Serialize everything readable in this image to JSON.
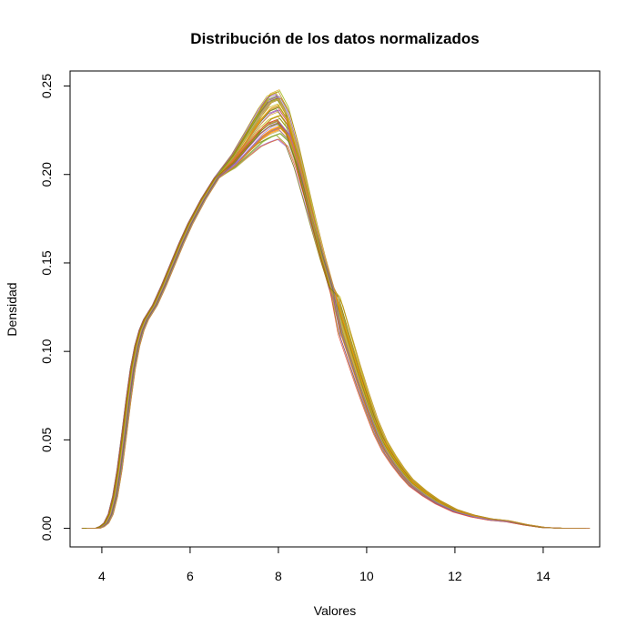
{
  "chart_data": {
    "type": "line",
    "title": "Distribución de los datos normalizados",
    "xlabel": "Valores",
    "ylabel": "Densidad",
    "xlim": [
      3.28,
      15.28
    ],
    "ylim": [
      -0.0105,
      0.2585
    ],
    "x_ticks": [
      4,
      6,
      8,
      10,
      12,
      14
    ],
    "x_tick_labels": [
      "4",
      "6",
      "8",
      "10",
      "12",
      "14"
    ],
    "y_ticks": [
      0,
      0.05,
      0.1,
      0.15,
      0.2,
      0.25
    ],
    "y_tick_labels": [
      "0.00",
      "0.05",
      "0.10",
      "0.15",
      "0.20",
      "0.25"
    ],
    "grid": false,
    "legend": "none",
    "series_count": 60,
    "series_colors": [
      "#9ACD32",
      "#DAA520",
      "#BDB76B",
      "#B8860B",
      "#8E44AD",
      "#E74C3C",
      "#6B8E23",
      "#C0B000",
      "#FF8C00",
      "#9370DB",
      "#808000",
      "#CD853F"
    ],
    "representative_series": {
      "x": [
        3.6,
        3.9,
        4.0,
        4.1,
        4.2,
        4.3,
        4.4,
        4.5,
        4.6,
        4.7,
        4.8,
        4.9,
        5.0,
        5.2,
        5.4,
        5.6,
        5.8,
        6.0,
        6.3,
        6.6,
        7.0,
        7.3,
        7.6,
        7.8,
        8.0,
        8.2,
        8.4,
        8.6,
        8.8,
        9.0,
        9.2,
        9.4,
        9.6,
        9.8,
        10.0,
        10.2,
        10.4,
        10.6,
        10.8,
        11.0,
        11.3,
        11.6,
        12.0,
        12.4,
        12.8,
        13.2,
        13.6,
        14.0,
        14.5,
        15.0
      ],
      "y": [
        0.0,
        0.0,
        0.001,
        0.003,
        0.008,
        0.018,
        0.033,
        0.052,
        0.072,
        0.09,
        0.103,
        0.112,
        0.118,
        0.126,
        0.137,
        0.149,
        0.161,
        0.172,
        0.186,
        0.198,
        0.208,
        0.218,
        0.228,
        0.233,
        0.235,
        0.228,
        0.212,
        0.192,
        0.172,
        0.153,
        0.136,
        0.119,
        0.103,
        0.087,
        0.072,
        0.058,
        0.047,
        0.039,
        0.032,
        0.026,
        0.02,
        0.015,
        0.01,
        0.007,
        0.005,
        0.004,
        0.002,
        0.0005,
        0.0,
        0.0
      ]
    }
  }
}
